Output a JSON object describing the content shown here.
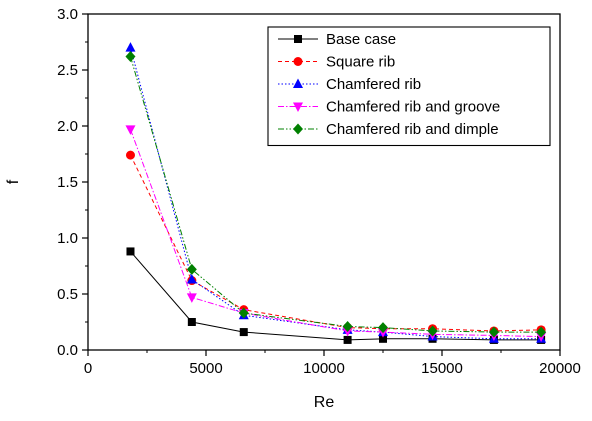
{
  "chart_data": {
    "type": "line",
    "title": "",
    "xlabel": "Re",
    "ylabel": "f",
    "xlim": [
      0,
      20000
    ],
    "ylim": [
      0.0,
      3.0
    ],
    "x_ticks": [
      0,
      5000,
      10000,
      15000,
      20000
    ],
    "x_tick_labels": [
      "0",
      "5000",
      "10000",
      "15000",
      "20000"
    ],
    "y_ticks": [
      0.0,
      0.5,
      1.0,
      1.5,
      2.0,
      2.5,
      3.0
    ],
    "y_tick_labels": [
      "0.0",
      "0.5",
      "1.0",
      "1.5",
      "2.0",
      "2.5",
      "3.0"
    ],
    "grid": false,
    "legend_position": "top-right",
    "x": [
      1800,
      4400,
      6600,
      11000,
      12500,
      14600,
      17200,
      19200
    ],
    "series": [
      {
        "name": "Base case",
        "color": "#000000",
        "marker": "square",
        "line_style": "solid",
        "values": [
          0.88,
          0.25,
          0.16,
          0.09,
          0.1,
          0.1,
          0.09,
          0.09
        ]
      },
      {
        "name": "Square rib",
        "color": "#ff0000",
        "marker": "circle",
        "line_style": "dashed",
        "values": [
          1.74,
          0.62,
          0.36,
          0.2,
          0.19,
          0.19,
          0.17,
          0.18
        ]
      },
      {
        "name": "Chamfered rib",
        "color": "#0000ff",
        "marker": "triangle-up",
        "line_style": "dotted",
        "values": [
          2.7,
          0.63,
          0.31,
          0.18,
          0.16,
          0.12,
          0.1,
          0.1
        ]
      },
      {
        "name": "Chamfered rib and groove",
        "color": "#ff00ff",
        "marker": "triangle-down",
        "line_style": "dashdot",
        "values": [
          1.97,
          0.47,
          0.33,
          0.17,
          0.16,
          0.14,
          0.13,
          0.12
        ]
      },
      {
        "name": "Chamfered rib and dimple",
        "color": "#008000",
        "marker": "diamond",
        "line_style": "dashdotdot",
        "values": [
          2.62,
          0.72,
          0.33,
          0.21,
          0.2,
          0.17,
          0.16,
          0.16
        ]
      }
    ]
  }
}
